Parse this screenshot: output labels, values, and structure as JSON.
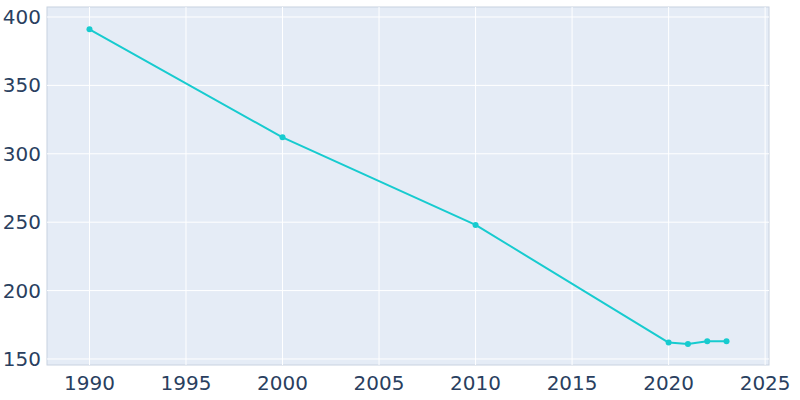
{
  "chart_data": {
    "type": "line",
    "x": [
      1990,
      2000,
      2010,
      2020,
      2021,
      2022,
      2023
    ],
    "values": [
      391,
      312,
      248,
      162,
      161,
      163,
      163
    ],
    "color": "#17cbcf",
    "marker": "circle",
    "xlim": [
      1987.8,
      2025.2
    ],
    "ylim": [
      145.6,
      407.3
    ],
    "xticks": [
      1990,
      1995,
      2000,
      2005,
      2010,
      2015,
      2020,
      2025
    ],
    "yticks": [
      150,
      200,
      250,
      300,
      350,
      400
    ],
    "grid": true
  }
}
